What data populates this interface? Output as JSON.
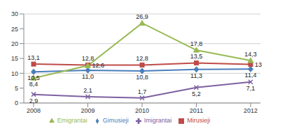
{
  "chart_data": {
    "type": "line",
    "categories": [
      "2008",
      "2009",
      "2010",
      "2011",
      "2012"
    ],
    "ylim": [
      0,
      30
    ],
    "yticks": [
      0,
      5,
      10,
      15,
      20,
      25,
      30
    ],
    "grid": true,
    "legend": "bottom",
    "data_labels": true,
    "series": [
      {
        "name": "Gimusieji",
        "color": "#4a7ebb",
        "marker": "diamond",
        "values": [
          10.5,
          11.0,
          10.8,
          11.3,
          11.4
        ],
        "value_labels": [
          "10,5",
          "11,0",
          "10,8",
          "11,3",
          "11,4"
        ]
      },
      {
        "name": "Mirusieji",
        "color": "#be4b48",
        "marker": "square",
        "values": [
          13.1,
          12.8,
          12.8,
          13.5,
          13
        ],
        "value_labels": [
          "13,1",
          "12,8",
          "12,8",
          "13,5",
          "13"
        ]
      },
      {
        "name": "Emigrantai",
        "color": "#98b954",
        "marker": "triangle",
        "values": [
          8.4,
          12.6,
          26.9,
          17.8,
          14.3
        ],
        "value_labels": [
          "8,4",
          "12,6",
          "26,9",
          "17,8",
          "14,3"
        ]
      },
      {
        "name": "Imigrantai",
        "color": "#7d60a0",
        "marker": "x",
        "values": [
          2.9,
          2.1,
          1.7,
          5.2,
          7.1
        ],
        "value_labels": [
          "2,9",
          "2,1",
          "1,7",
          "5,2",
          "7,1"
        ]
      }
    ]
  }
}
